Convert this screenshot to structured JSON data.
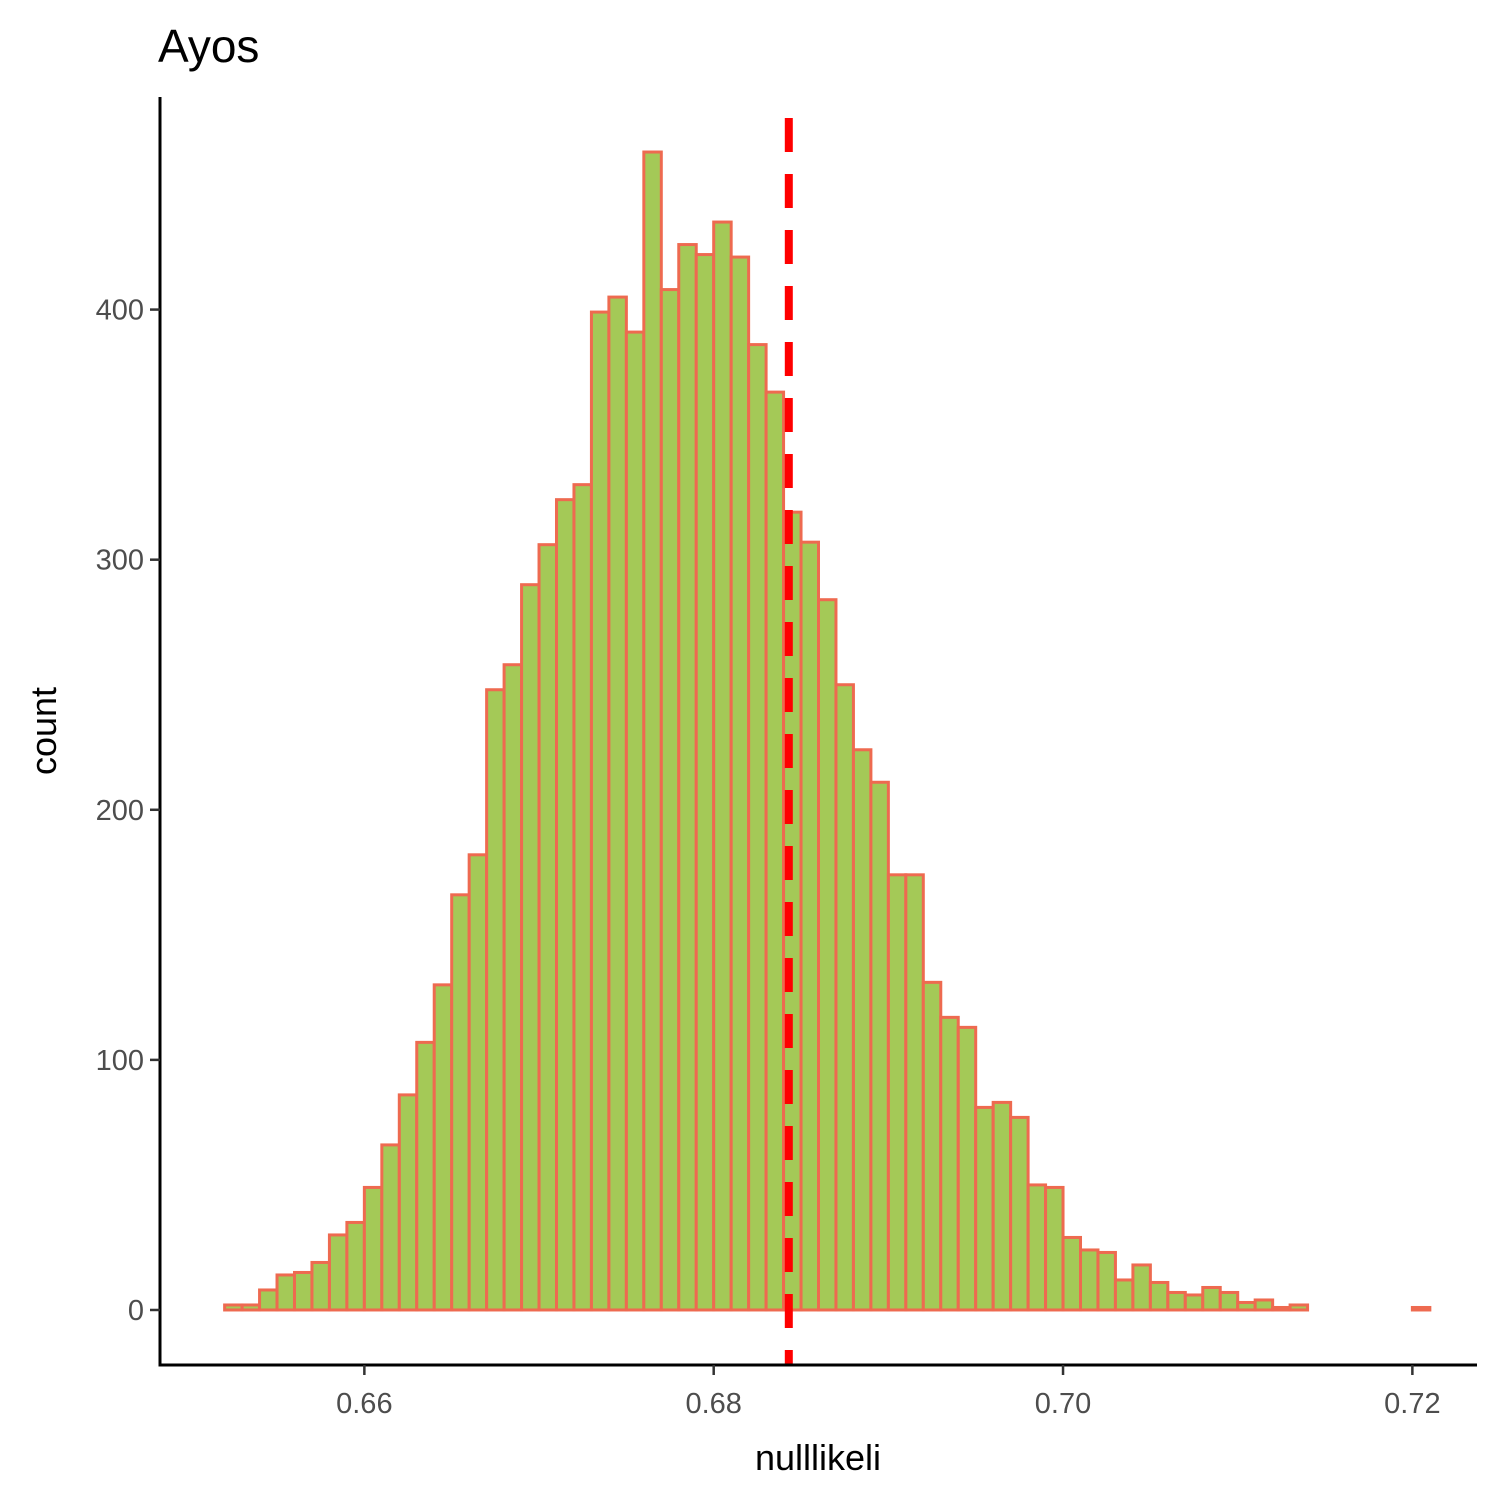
{
  "chart_data": {
    "type": "bar",
    "title": "Ayos",
    "xlabel": "nulllikeli",
    "ylabel": "count",
    "xlim": [
      0.6483,
      0.7237
    ],
    "ylim": [
      -22,
      485
    ],
    "x_ticks": [
      {
        "value": 0.66,
        "label": "0.66"
      },
      {
        "value": 0.68,
        "label": "0.68"
      },
      {
        "value": 0.7,
        "label": "0.70"
      },
      {
        "value": 0.72,
        "label": "0.72"
      }
    ],
    "y_ticks": [
      {
        "value": 0,
        "label": "0"
      },
      {
        "value": 100,
        "label": "100"
      },
      {
        "value": 200,
        "label": "200"
      },
      {
        "value": 300,
        "label": "300"
      },
      {
        "value": 400,
        "label": "400"
      }
    ],
    "bin_start": 0.652,
    "bin_width": 0.001,
    "values": [
      2,
      2,
      8,
      14,
      15,
      19,
      30,
      35,
      49,
      66,
      86,
      107,
      130,
      166,
      182,
      248,
      258,
      290,
      306,
      324,
      330,
      399,
      405,
      391,
      463,
      408,
      426,
      422,
      435,
      421,
      386,
      367,
      319,
      307,
      284,
      250,
      224,
      211,
      174,
      174,
      131,
      117,
      113,
      81,
      83,
      77,
      50,
      49,
      29,
      24,
      23,
      12,
      18,
      11,
      7,
      6,
      9,
      7,
      3,
      4,
      1,
      2,
      0,
      0,
      0,
      0,
      0,
      0,
      1
    ],
    "vline": {
      "x": 0.6843,
      "style": "dashed",
      "color": "#ff0000"
    },
    "bar_fill": "#a4c957",
    "bar_stroke": "#ee6a50",
    "grid": false,
    "legend": "none"
  }
}
